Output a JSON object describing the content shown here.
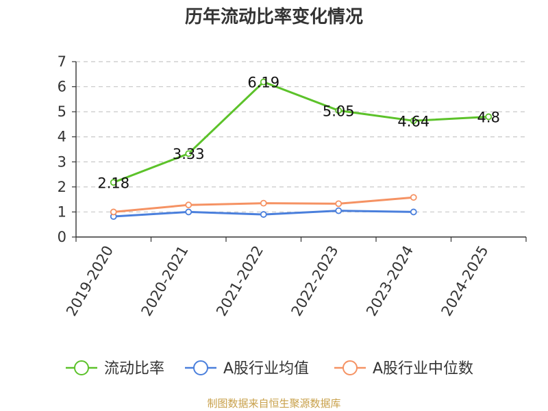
{
  "chart_data": {
    "type": "line",
    "title": "历年流动比率变化情况",
    "categories": [
      "2019-2020",
      "2020-2021",
      "2021-2022",
      "2022-2023",
      "2023-2024",
      "2024-2025"
    ],
    "ylim": [
      0,
      7
    ],
    "yticks": [
      0,
      1,
      2,
      3,
      4,
      5,
      6,
      7
    ],
    "grid": true,
    "legend_position": "bottom",
    "series": [
      {
        "name": "流动比率",
        "color": "#5cc22a",
        "values": [
          2.18,
          3.33,
          6.19,
          5.05,
          4.64,
          4.8
        ],
        "labels": [
          "2.18",
          "3.33",
          "6.19",
          "5.05",
          "4.64",
          "4.8"
        ]
      },
      {
        "name": "A股行业均值",
        "color": "#4a7fdc",
        "values": [
          0.82,
          1.0,
          0.9,
          1.05,
          1.0,
          null
        ]
      },
      {
        "name": "A股行业中位数",
        "color": "#f59263",
        "values": [
          1.0,
          1.28,
          1.35,
          1.33,
          1.58,
          null
        ]
      }
    ]
  },
  "source_text": "制图数据来自恒生聚源数据库"
}
